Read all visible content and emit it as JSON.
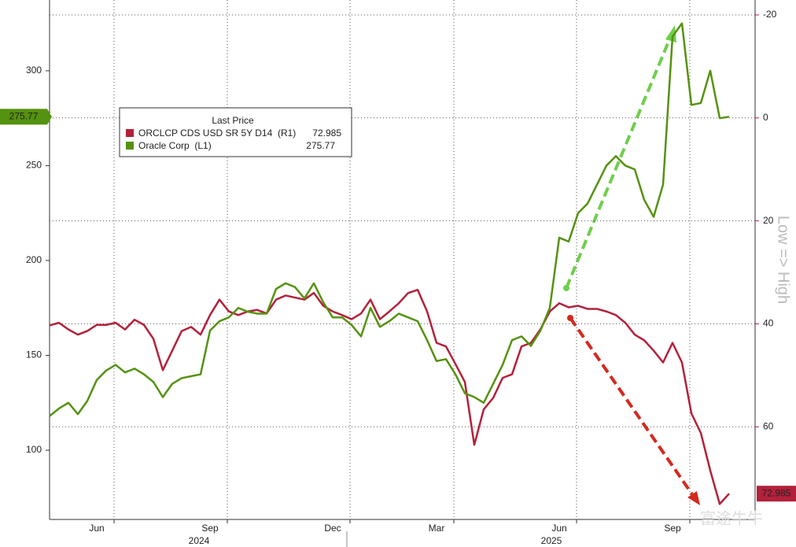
{
  "chart_data": {
    "type": "line",
    "legend_title": "Last Price",
    "categories": [
      null,
      null,
      null,
      null,
      null,
      "Jun",
      null,
      null,
      null,
      null,
      null,
      null,
      null,
      null,
      null,
      null,
      null,
      "Sep",
      null,
      null,
      null,
      null,
      null,
      null,
      null,
      null,
      null,
      null,
      null,
      null,
      "Dec",
      null,
      null,
      null,
      null,
      null,
      null,
      null,
      null,
      null,
      null,
      "Mar",
      null,
      null,
      null,
      null,
      null,
      null,
      null,
      null,
      null,
      null,
      null,
      null,
      "Jun",
      null,
      null,
      null,
      null,
      null,
      null,
      null,
      null,
      null,
      null,
      null,
      "Sep",
      null,
      null,
      null,
      null,
      null,
      null
    ],
    "x_group_labels": [
      "2024",
      "2025"
    ],
    "y2_label": "Low => High",
    "watermark": "富途牛牛",
    "ylim": [
      63.5,
      337.3
    ],
    "yticks": [
      100,
      150,
      200,
      250,
      300
    ],
    "y2lim": [
      78,
      -22.9
    ],
    "y2ticks": [
      -20,
      0,
      20,
      40,
      60
    ],
    "grid": true,
    "series": [
      {
        "name": "ORCLCP CDS USD SR 5Y D14  (R1)",
        "color": "#b3213b",
        "axis": "y2",
        "values": [
          40.3,
          39.8,
          41.1,
          42.1,
          41.4,
          40.2,
          40.2,
          39.8,
          41.1,
          39.2,
          40.2,
          42.9,
          49.0,
          45.2,
          41.4,
          40.6,
          42.1,
          38.3,
          35.3,
          37.6,
          38.3,
          37.6,
          37.3,
          38.0,
          35.3,
          34.5,
          34.9,
          35.3,
          34.0,
          36.5,
          37.6,
          38.3,
          39.1,
          38.0,
          35.3,
          39.1,
          37.6,
          36.0,
          34.0,
          33.4,
          37.6,
          43.7,
          44.4,
          47.8,
          51.3,
          63.5,
          56.6,
          54.4,
          50.5,
          49.8,
          44.4,
          43.7,
          41.1,
          37.6,
          36.0,
          36.8,
          36.5,
          37.1,
          37.1,
          37.6,
          38.3,
          39.8,
          42.1,
          43.2,
          45.2,
          47.5,
          43.7,
          47.5,
          57.4,
          61.2,
          68.5,
          75.0,
          72.985
        ]
      },
      {
        "name": "Oracle Corp  (L1)",
        "color": "#55920f",
        "values": [
          118,
          122,
          125,
          119,
          126,
          137,
          142,
          145,
          141,
          143,
          140,
          136,
          128,
          135,
          138,
          139,
          140,
          163,
          168,
          170,
          175,
          173,
          172,
          172,
          185,
          188,
          186,
          180,
          188,
          178,
          170,
          170,
          166,
          160,
          175,
          165,
          168,
          172,
          170,
          168,
          158,
          147,
          148,
          140,
          130,
          128,
          125,
          135,
          145,
          158,
          160,
          155,
          163,
          175,
          212,
          210,
          225,
          230,
          240,
          250,
          255,
          250,
          248,
          232,
          223,
          240,
          318,
          325,
          282,
          283,
          300,
          275,
          275.77
        ]
      }
    ]
  }
}
